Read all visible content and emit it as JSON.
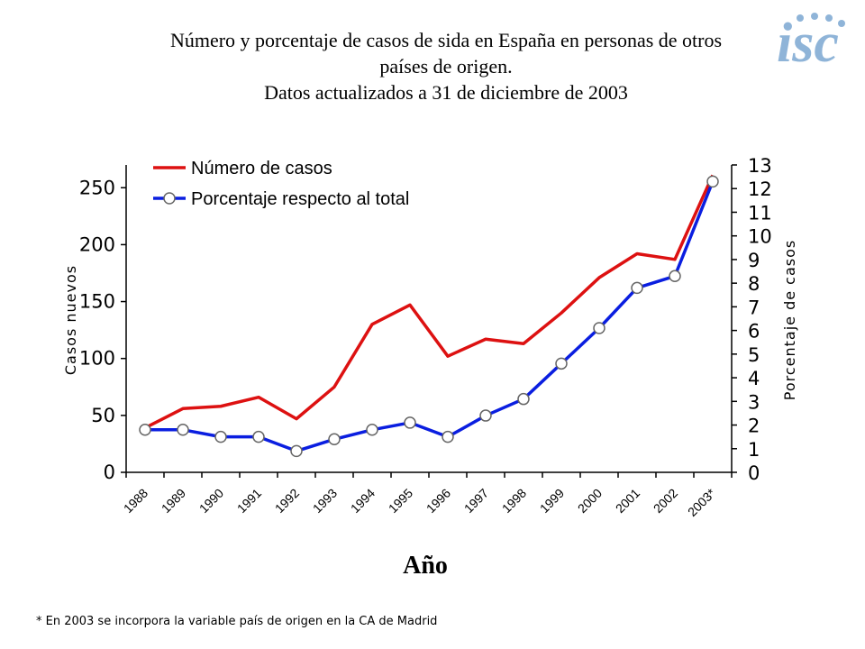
{
  "title_lines": [
    "Número y porcentaje de casos de sida en España en personas de otros",
    "países de origen.",
    "Datos actualizados a 31 de diciembre de 2003"
  ],
  "logo": {
    "text": "isc",
    "color": "#8fb4d8"
  },
  "footnote": "* En 2003 se incorpora la variable país de origen en la CA de Madrid",
  "chart_data": {
    "type": "line",
    "categories": [
      "1988",
      "1989",
      "1990",
      "1991",
      "1992",
      "1993",
      "1994",
      "1995",
      "1996",
      "1997",
      "1998",
      "1999",
      "2000",
      "2001",
      "2002",
      "2003*"
    ],
    "series": [
      {
        "name": "Número de casos",
        "axis": "left",
        "color": "#dd1111",
        "marker": false,
        "values": [
          39,
          56,
          58,
          66,
          47,
          75,
          130,
          147,
          102,
          117,
          113,
          140,
          171,
          192,
          187,
          261
        ]
      },
      {
        "name": "Porcentaje respecto al total",
        "axis": "right",
        "color": "#0a1ee0",
        "marker": true,
        "values": [
          1.8,
          1.8,
          1.5,
          1.5,
          0.9,
          1.4,
          1.8,
          2.1,
          1.5,
          2.4,
          3.1,
          4.6,
          6.1,
          7.8,
          8.3,
          12.3
        ]
      }
    ],
    "xlabel": "Año",
    "ylabel_left": "Casos nuevos",
    "ylabel_right": "Porcentaje de casos",
    "ylim_left": [
      0,
      270
    ],
    "yticks_left": [
      0,
      50,
      100,
      150,
      200,
      250
    ],
    "ylim_right": [
      0,
      13
    ],
    "yticks_right": [
      0,
      1,
      2,
      3,
      4,
      5,
      6,
      7,
      8,
      9,
      10,
      11,
      12,
      13
    ],
    "legend_position": "top-left",
    "grid": false
  }
}
